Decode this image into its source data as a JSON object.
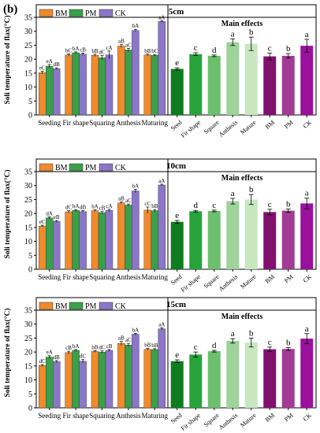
{
  "figure_label": "(b)",
  "legend": {
    "BM": "BM",
    "PM": "PM",
    "CK": "CK"
  },
  "colors": {
    "BM": "#f08a2c",
    "PM": "#3aa04a",
    "CK": "#8b76c8",
    "seed_main": "#0d7d20",
    "fir_main": "#27a33a",
    "square_main": "#6cbf6c",
    "anthesis_main": "#9ed39a",
    "mature_main": "#c7e7c1",
    "bm_main": "#82106f",
    "pm_main": "#a13b94",
    "ck_main": "#9a119d"
  },
  "chart_data": [
    {
      "type": "bar",
      "title": "5cm",
      "ylabel": "Soli temperature of flax(°C)",
      "ylim": [
        0,
        35
      ],
      "yticks": [
        0,
        5,
        10,
        15,
        20,
        25,
        30,
        35
      ],
      "interaction": {
        "categories": [
          "Seeding",
          "Fir shape",
          "Squaring",
          "Anthesis",
          "Maturing"
        ],
        "series": [
          {
            "name": "BM",
            "values": [
              15.2,
              21.5,
              21.4,
              24.7,
              21.5
            ],
            "errors": [
              0.5,
              0.4,
              0.4,
              0.5,
              0.3
            ],
            "labels": [
              "eC",
              "bC",
              "bB",
              "aB",
              "bB"
            ]
          },
          {
            "name": "PM",
            "values": [
              17.5,
              22.3,
              20.5,
              23.3,
              21.4
            ],
            "errors": [
              0.6,
              0.3,
              0.8,
              0.6,
              0.3
            ],
            "labels": [
              "eA",
              "bA",
              "dC",
              "aC",
              "bC"
            ]
          },
          {
            "name": "CK",
            "values": [
              16.6,
              21.8,
              21.5,
              30.3,
              33.5
            ],
            "errors": [
              0.3,
              0.4,
              1.4,
              0.4,
              0.3
            ],
            "labels": [
              "dB",
              "cB",
              "cA",
              "bA",
              "aA"
            ]
          }
        ]
      },
      "main_effects": {
        "title": "Main effects",
        "categories": [
          "Seed",
          "Fir shape",
          "Square",
          "Anthesis",
          "Mature",
          "BM",
          "PM",
          "CK"
        ],
        "values": [
          16.5,
          21.8,
          21.2,
          26.1,
          25.5,
          21.0,
          21.2,
          24.8
        ],
        "errors": [
          0.4,
          0.5,
          0.3,
          1.2,
          2.4,
          1.2,
          0.8,
          2.3
        ],
        "labels": [
          "e",
          "c",
          "d",
          "a",
          "b",
          "c",
          "b",
          "a"
        ]
      }
    },
    {
      "type": "bar",
      "title": "10cm",
      "ylabel": "Soli temperature of flax(°C)",
      "ylim": [
        0,
        35
      ],
      "yticks": [
        0,
        5,
        10,
        15,
        20,
        25,
        30,
        35
      ],
      "interaction": {
        "categories": [
          "Seeding",
          "Fir shape",
          "Squaring",
          "Anthesis",
          "Maturing"
        ],
        "series": [
          {
            "name": "BM",
            "values": [
              15.5,
              20.6,
              21.0,
              23.8,
              21.2
            ],
            "errors": [
              0.3,
              0.4,
              0.3,
              0.3,
              1.1
            ],
            "labels": [
              "eC",
              "dC",
              "bA",
              "aB",
              "cC"
            ]
          },
          {
            "name": "PM",
            "values": [
              18.4,
              21.1,
              20.3,
              23.0,
              21.0
            ],
            "errors": [
              0.4,
              0.3,
              0.4,
              0.4,
              0.4
            ],
            "labels": [
              "dA",
              "bA",
              "cB",
              "aC",
              "bB"
            ]
          },
          {
            "name": "CK",
            "values": [
              17.2,
              20.7,
              21.1,
              28.1,
              30.2
            ],
            "errors": [
              0.3,
              0.3,
              0.4,
              0.6,
              0.3
            ],
            "labels": [
              "eB",
              "dB",
              "cA",
              "bA",
              "aA"
            ]
          }
        ]
      },
      "main_effects": {
        "title": "Main effects",
        "categories": [
          "Seed",
          "Fir shape",
          "Square",
          "Anthesis",
          "Mature",
          "BM",
          "PM",
          "CK"
        ],
        "values": [
          17.0,
          20.8,
          20.9,
          24.4,
          25.0,
          20.5,
          21.0,
          23.6
        ],
        "errors": [
          0.5,
          0.3,
          0.3,
          1.0,
          1.8,
          1.0,
          0.6,
          1.9
        ],
        "labels": [
          "e",
          "d",
          "c",
          "a",
          "b",
          "c",
          "b",
          "a"
        ]
      }
    },
    {
      "type": "bar",
      "title": "15cm",
      "ylabel": "Soli temperature of flax(°C)",
      "ylim": [
        0,
        35
      ],
      "yticks": [
        0,
        5,
        10,
        15,
        20,
        25,
        30,
        35
      ],
      "interaction": {
        "categories": [
          "Seeding",
          "Fir shape",
          "Squaring",
          "Anthesis",
          "Maturing"
        ],
        "series": [
          {
            "name": "BM",
            "values": [
              15.2,
              19.8,
              20.2,
              23.1,
              21.0
            ],
            "errors": [
              0.3,
              0.5,
              0.3,
              0.7,
              0.3
            ],
            "labels": [
              "dC",
              "cB",
              "bB",
              "aB",
              "bB"
            ]
          },
          {
            "name": "PM",
            "values": [
              18.2,
              20.6,
              20.0,
              22.5,
              20.9
            ],
            "errors": [
              0.5,
              0.3,
              0.4,
              0.6,
              0.3
            ],
            "labels": [
              "eA",
              "bA",
              "dC",
              "aC",
              "bB"
            ]
          },
          {
            "name": "CK",
            "values": [
              16.6,
              16.7,
              20.6,
              26.4,
              28.3
            ],
            "errors": [
              0.4,
              0.6,
              0.3,
              0.3,
              0.4
            ],
            "labels": [
              "dB",
              "dC",
              "cB",
              "bA",
              "aA"
            ]
          }
        ]
      },
      "main_effects": {
        "title": "Main effects",
        "categories": [
          "Seed",
          "Fir shape",
          "Square",
          "Anthesis",
          "Mature",
          "BM",
          "PM",
          "CK"
        ],
        "values": [
          16.7,
          19.1,
          20.3,
          24.0,
          23.4,
          21.0,
          21.1,
          24.8
        ],
        "errors": [
          0.5,
          0.9,
          0.3,
          0.8,
          1.6,
          0.8,
          0.5,
          1.8
        ],
        "labels": [
          "e",
          "c",
          "d",
          "a",
          "b",
          "c",
          "b",
          "a"
        ]
      }
    }
  ]
}
